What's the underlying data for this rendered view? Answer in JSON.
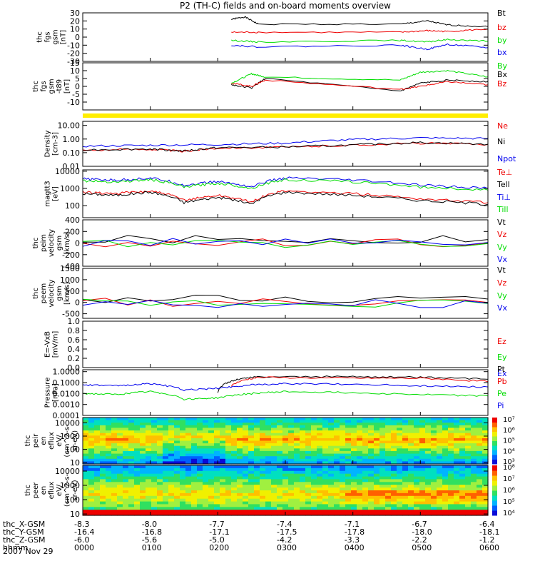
{
  "title": "P2 (TH-C) fields and on-board moments overview",
  "colors": {
    "black": "#000000",
    "red": "#ee0000",
    "green": "#00dd00",
    "blue": "#0000ee",
    "yellow": "#ffee00"
  },
  "chart_data": [
    {
      "type": "line",
      "id": "fgs1",
      "ylabel": [
        "thc",
        "fgs",
        "gsm",
        "[nT]"
      ],
      "ylim": [
        -30,
        30
      ],
      "ticks": [
        "30",
        "20",
        "10",
        "0",
        "-10",
        "-20",
        "-30"
      ],
      "tick_values": [
        30,
        20,
        10,
        0,
        -10,
        -20,
        -30
      ],
      "series": [
        {
          "name": "Bt",
          "color": "black",
          "x": [
            2.2,
            2.4,
            2.6,
            4.7,
            5.1,
            5.4,
            6.0
          ],
          "y": [
            22,
            25,
            16,
            16,
            20,
            15,
            13
          ]
        },
        {
          "name": "bz",
          "color": "red",
          "x": [
            2.2,
            2.6,
            4.7,
            5.1,
            5.4,
            6.0
          ],
          "y": [
            6,
            6,
            6,
            8,
            7,
            10
          ]
        },
        {
          "name": "by",
          "color": "green",
          "x": [
            2.2,
            2.6,
            4.7,
            5.1,
            5.4,
            6.0
          ],
          "y": [
            -4,
            -6,
            -4,
            -6,
            -3,
            -5
          ]
        },
        {
          "name": "bx",
          "color": "blue",
          "x": [
            2.2,
            2.6,
            4.7,
            5.1,
            5.4,
            6.0
          ],
          "y": [
            -10,
            -12,
            -10,
            -15,
            -9,
            -13
          ]
        }
      ]
    },
    {
      "type": "line",
      "id": "fgs2",
      "ylabel": [
        "thc",
        "fgs",
        "gsm",
        "-t89",
        "[nT]"
      ],
      "ylim": [
        -15,
        15
      ],
      "ticks": [
        "15",
        "10",
        "5",
        "0",
        "-5",
        "-10"
      ],
      "tick_values": [
        15,
        10,
        5,
        0,
        -5,
        -10
      ],
      "series": [
        {
          "name": "By",
          "color": "green",
          "x": [
            2.2,
            2.5,
            2.7,
            4.7,
            5.0,
            5.4,
            6.0
          ],
          "y": [
            2,
            8,
            6,
            4,
            9,
            10,
            6
          ]
        },
        {
          "name": "Bx",
          "color": "black",
          "x": [
            2.2,
            2.5,
            2.7,
            4.7,
            5.0,
            5.4,
            6.0
          ],
          "y": [
            1,
            -1,
            5,
            -3,
            2,
            4,
            3
          ]
        },
        {
          "name": "Bz",
          "color": "red",
          "x": [
            2.2,
            2.5,
            2.7,
            4.7,
            5.0,
            5.4,
            6.0
          ],
          "y": [
            2,
            0,
            4,
            -2,
            0,
            3,
            1
          ]
        }
      ]
    },
    {
      "type": "line",
      "id": "density",
      "ylabel": [
        "Density",
        "[cm-3]"
      ],
      "log": true,
      "ylim": [
        0.01,
        20
      ],
      "ticks": [
        "10.00",
        "1.00",
        "0.10",
        "0.01"
      ],
      "tick_values": [
        10,
        1,
        0.1,
        0.01
      ],
      "series": [
        {
          "name": "Ne",
          "color": "red",
          "x": [
            0,
            1,
            1.5,
            2,
            3,
            4,
            5,
            6
          ],
          "y": [
            0.15,
            0.18,
            0.12,
            0.22,
            0.25,
            0.35,
            0.5,
            0.4
          ]
        },
        {
          "name": "Ni",
          "color": "black",
          "x": [
            0,
            1,
            1.5,
            2,
            3,
            4,
            5,
            6
          ],
          "y": [
            0.16,
            0.19,
            0.13,
            0.23,
            0.26,
            0.36,
            0.55,
            0.42
          ]
        },
        {
          "name": "Npot",
          "color": "blue",
          "x": [
            0,
            1,
            2,
            3,
            4,
            5,
            6
          ],
          "y": [
            0.3,
            0.35,
            0.4,
            0.5,
            0.9,
            1.2,
            1.1
          ]
        }
      ]
    },
    {
      "type": "line",
      "id": "magtt3",
      "ylabel": [
        "magtt3",
        "[eV]"
      ],
      "log": true,
      "ylim": [
        20,
        12000
      ],
      "ticks": [
        "10000",
        "1000",
        "100"
      ],
      "tick_values": [
        10000,
        1000,
        100
      ],
      "series": [
        {
          "name": "Te⊥",
          "color": "red",
          "x": [
            0,
            0.5,
            1,
            1.5,
            2,
            2.5,
            3,
            4,
            5,
            6
          ],
          "y": [
            600,
            500,
            700,
            200,
            400,
            150,
            700,
            500,
            250,
            150
          ]
        },
        {
          "name": "Tell",
          "color": "black",
          "x": [
            0,
            0.5,
            1,
            1.5,
            2,
            2.5,
            3,
            4,
            5,
            6
          ],
          "y": [
            500,
            400,
            600,
            150,
            300,
            120,
            600,
            400,
            200,
            120
          ]
        },
        {
          "name": "Ti⊥",
          "color": "blue",
          "x": [
            0,
            0.5,
            1,
            1.5,
            2,
            2.5,
            3,
            4,
            5,
            6
          ],
          "y": [
            3500,
            3000,
            4000,
            1500,
            2500,
            1200,
            4000,
            3000,
            1500,
            1000
          ]
        },
        {
          "name": "Till",
          "color": "green",
          "x": [
            0,
            0.5,
            1,
            1.5,
            2,
            2.5,
            3,
            4,
            5,
            6
          ],
          "y": [
            2800,
            2400,
            3200,
            1200,
            2000,
            1000,
            3200,
            2400,
            1200,
            800
          ]
        }
      ]
    },
    {
      "type": "line",
      "id": "peim",
      "ylabel": [
        "thc",
        "peim",
        "velocity",
        "gsm",
        "[km/s]"
      ],
      "ylim": [
        -400,
        400
      ],
      "ticks": [
        "400",
        "200",
        "0",
        "-200",
        "-400"
      ],
      "tick_values": [
        400,
        200,
        0,
        -200,
        -400
      ],
      "series": [
        {
          "name": "Vt",
          "color": "black",
          "x": [
            0,
            6
          ],
          "y": [
            60,
            60
          ]
        },
        {
          "name": "Vz",
          "color": "red",
          "x": [
            0,
            6
          ],
          "y": [
            0,
            0
          ]
        },
        {
          "name": "Vy",
          "color": "green",
          "x": [
            0,
            6
          ],
          "y": [
            -10,
            -10
          ]
        },
        {
          "name": "Vx",
          "color": "blue",
          "x": [
            0,
            6
          ],
          "y": [
            10,
            10
          ]
        }
      ]
    },
    {
      "type": "line",
      "id": "peem",
      "ylabel": [
        "thc",
        "peem",
        "velocity",
        "gsm",
        "[km/s]"
      ],
      "ylim": [
        -700,
        1500
      ],
      "ticks": [
        "1500",
        "1000",
        "500",
        "0",
        "-500"
      ],
      "tick_values": [
        1500,
        1000,
        500,
        0,
        -500
      ],
      "series": [
        {
          "name": "Vt",
          "color": "black",
          "x": [
            0,
            6
          ],
          "y": [
            150,
            150
          ]
        },
        {
          "name": "Vz",
          "color": "red",
          "x": [
            0,
            6
          ],
          "y": [
            0,
            0
          ]
        },
        {
          "name": "Vy",
          "color": "green",
          "x": [
            0,
            6
          ],
          "y": [
            -50,
            -50
          ]
        },
        {
          "name": "Vx",
          "color": "blue",
          "x": [
            0,
            6
          ],
          "y": [
            -30,
            -30
          ]
        }
      ]
    },
    {
      "type": "line",
      "id": "efield",
      "ylabel": [
        "E=-VxB",
        "[mV/m]"
      ],
      "ylim": [
        0,
        1
      ],
      "ticks": [
        "1.0",
        "0.8",
        "0.6",
        "0.4",
        "0.2",
        "0.0"
      ],
      "tick_values": [
        1,
        0.8,
        0.6,
        0.4,
        0.2,
        0
      ],
      "series": [
        {
          "name": "Ez",
          "color": "red",
          "x": [],
          "y": []
        },
        {
          "name": "Ey",
          "color": "green",
          "x": [],
          "y": []
        },
        {
          "name": "Ex",
          "color": "blue",
          "x": [],
          "y": []
        }
      ]
    },
    {
      "type": "line",
      "id": "pressure",
      "ylabel": [
        "Pressure",
        "[nPa]"
      ],
      "log": true,
      "ylim": [
        0.0001,
        1.5
      ],
      "ticks": [
        "1.0000",
        "0.1000",
        "0.0100",
        "0.0010",
        "0.0001"
      ],
      "tick_values": [
        1,
        0.1,
        0.01,
        0.001,
        0.0001
      ],
      "series": [
        {
          "name": "Pt",
          "color": "black",
          "x": [
            2.0,
            2.3,
            2.6,
            4.0,
            5.0,
            6.0
          ],
          "y": [
            0.01,
            0.2,
            0.35,
            0.35,
            0.3,
            0.2
          ]
        },
        {
          "name": "Pb",
          "color": "red",
          "x": [
            2.2,
            2.6,
            4.0,
            5.0,
            6.0
          ],
          "y": [
            0.05,
            0.3,
            0.25,
            0.25,
            0.12
          ]
        },
        {
          "name": "Pe",
          "color": "green",
          "x": [
            0,
            0.5,
            1,
            1.5,
            2,
            2.5,
            3,
            4,
            5,
            6
          ],
          "y": [
            0.01,
            0.008,
            0.015,
            0.003,
            0.004,
            0.01,
            0.015,
            0.012,
            0.008,
            0.006
          ]
        },
        {
          "name": "Pi",
          "color": "blue",
          "x": [
            0,
            0.5,
            1,
            1.5,
            2,
            2.5,
            3,
            4,
            5,
            6
          ],
          "y": [
            0.06,
            0.05,
            0.08,
            0.02,
            0.03,
            0.06,
            0.08,
            0.07,
            0.05,
            0.04
          ]
        }
      ]
    },
    {
      "type": "heatmap",
      "id": "peir",
      "ylabel": [
        "thc",
        "peir",
        "en",
        "eflux",
        "eV/",
        "(cm^2-s-",
        "sr-eV)"
      ],
      "log": true,
      "ylim": [
        8,
        25000
      ],
      "ticks": [
        "10000",
        "1000",
        "100",
        "10"
      ],
      "tick_values": [
        10000,
        1000,
        100,
        10
      ],
      "colorbar_ticks": [
        "10⁷",
        "10⁶",
        "10⁵",
        "10⁴",
        "10³"
      ]
    },
    {
      "type": "heatmap",
      "id": "peer",
      "ylabel": [
        "thc",
        "peer",
        "en",
        "eflux",
        "eV/",
        "(cm^2-s-",
        "sr-eV)"
      ],
      "log": true,
      "ylim": [
        8,
        25000
      ],
      "ticks": [
        "10000",
        "1000",
        "100",
        "10"
      ],
      "tick_values": [
        10000,
        1000,
        100,
        10
      ],
      "colorbar_ticks": [
        "10⁸",
        "10⁷",
        "10⁶",
        "10⁵",
        "10⁴"
      ]
    }
  ],
  "xaxis": {
    "rows": [
      {
        "label": "thc_X-GSM",
        "values": [
          "-8.3",
          "-8.0",
          "-7.7",
          "-7.4",
          "-7.1",
          "-6.7",
          "-6.4"
        ]
      },
      {
        "label": "thc_Y-GSM",
        "values": [
          "-16.4",
          "-16.8",
          "-17.1",
          "-17.5",
          "-17.8",
          "-18.0",
          "-18.1"
        ]
      },
      {
        "label": "thc_Z-GSM",
        "values": [
          "-6.0",
          "-5.6",
          "-5.0",
          "-4.2",
          "-3.3",
          "-2.2",
          "-1.2"
        ]
      },
      {
        "label": "hhmm",
        "values": [
          "0000",
          "0100",
          "0200",
          "0300",
          "0400",
          "0500",
          "0600"
        ]
      }
    ],
    "date": "2007 Nov 29"
  }
}
